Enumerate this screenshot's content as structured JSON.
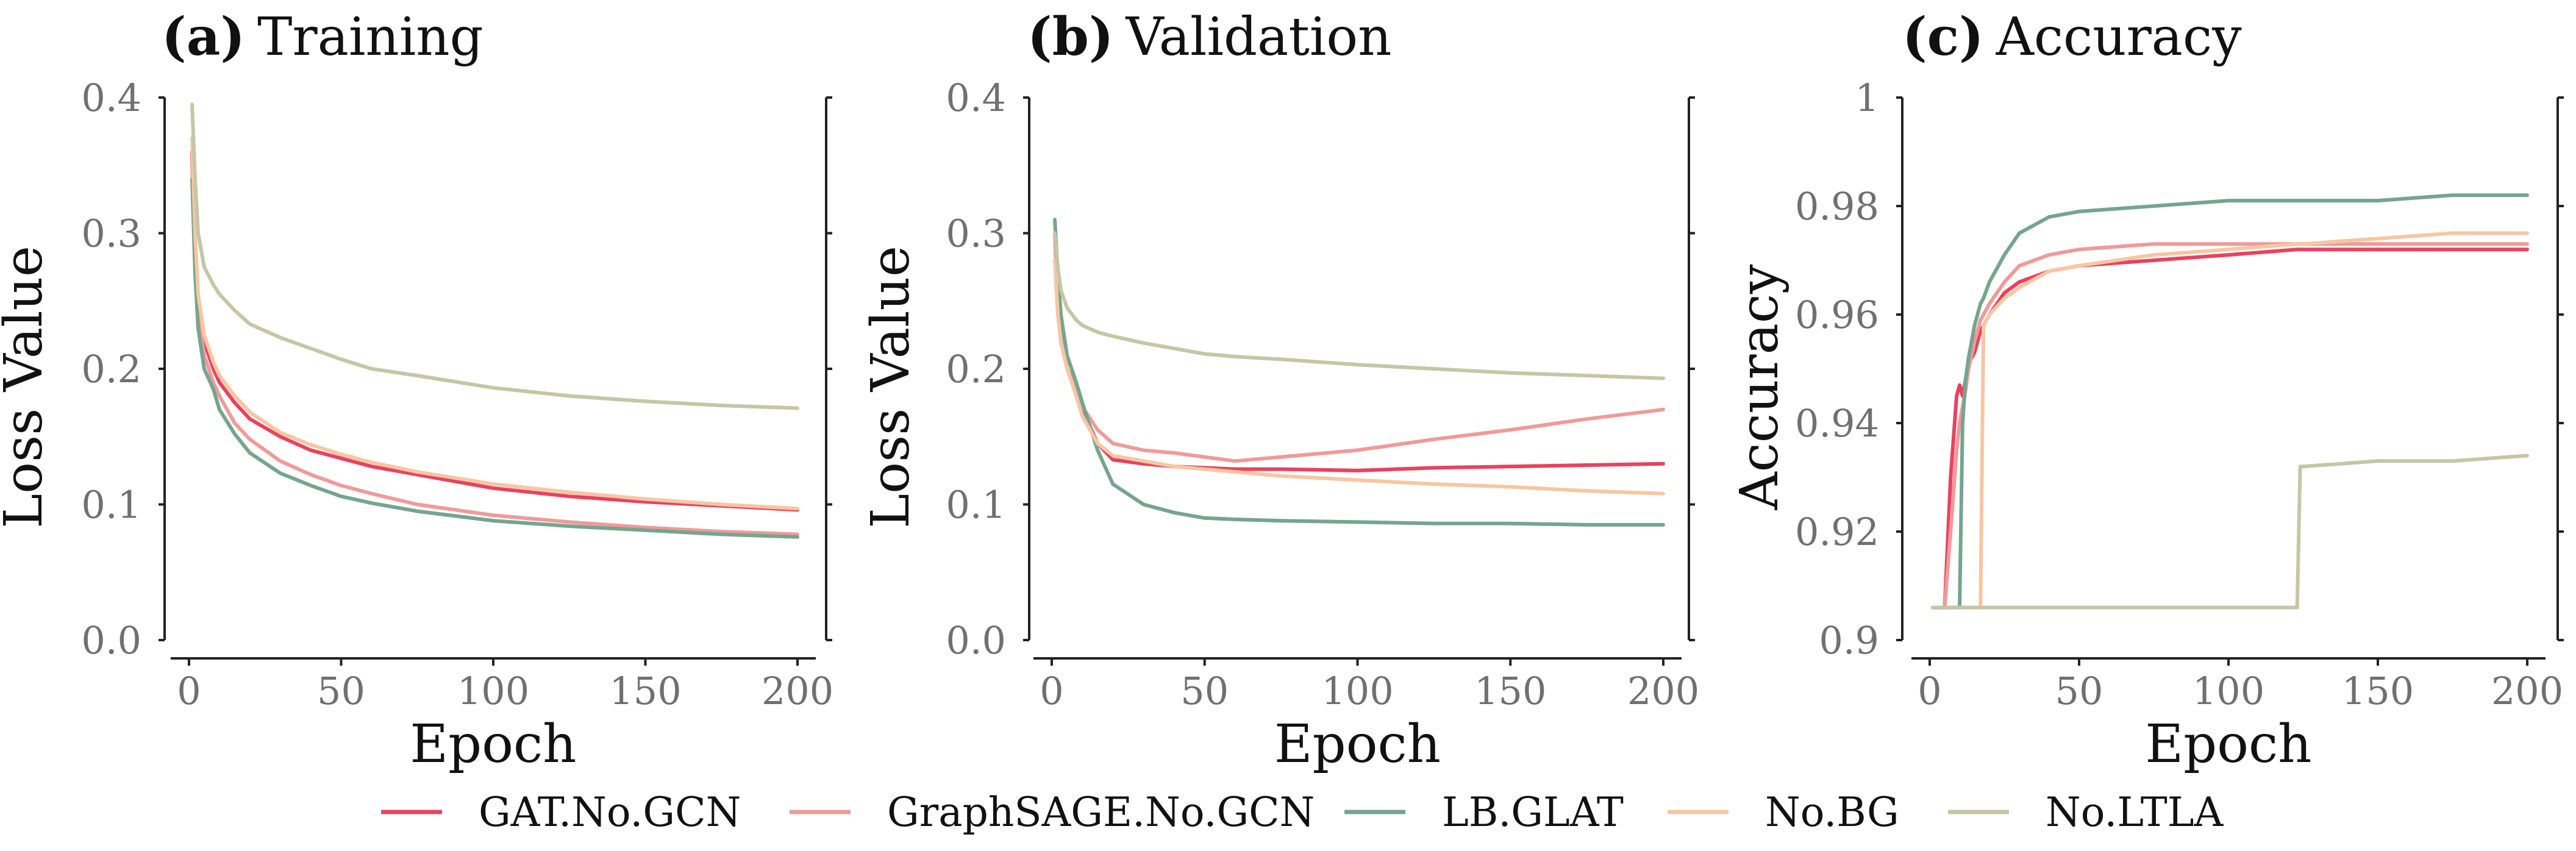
{
  "legend": [
    {
      "name": "GAT.No.GCN",
      "color": "#e8425f"
    },
    {
      "name": "GraphSAGE.No.GCN",
      "color": "#f09a9a"
    },
    {
      "name": "LB.GLAT",
      "color": "#74a58f"
    },
    {
      "name": "No.BG",
      "color": "#f7c6a3"
    },
    {
      "name": "No.LTLA",
      "color": "#c5c6a5"
    }
  ],
  "chart_data": [
    {
      "type": "line",
      "panel_letter": "(a)",
      "title": "Training",
      "xlabel": "Epoch",
      "ylabel": "Loss Value",
      "xlim": [
        0,
        200
      ],
      "ylim": [
        0,
        0.4
      ],
      "xticks": [
        0,
        50,
        100,
        150,
        200
      ],
      "xtick_labels": [
        "0",
        "50",
        "100",
        "150",
        "200"
      ],
      "yticks": [
        0,
        0.1,
        0.2,
        0.3,
        0.4
      ],
      "ytick_labels": [
        "0.0",
        "0.1",
        "0.2",
        "0.3",
        "0.4"
      ],
      "x": [
        1,
        2,
        3,
        5,
        8,
        10,
        15,
        20,
        30,
        40,
        50,
        60,
        75,
        100,
        125,
        150,
        175,
        200
      ],
      "series": [
        {
          "name": "GAT.No.GCN",
          "values": [
            0.36,
            0.29,
            0.25,
            0.22,
            0.2,
            0.19,
            0.175,
            0.163,
            0.15,
            0.14,
            0.134,
            0.128,
            0.122,
            0.112,
            0.106,
            0.102,
            0.099,
            0.096
          ]
        },
        {
          "name": "GraphSAGE.No.GCN",
          "values": [
            0.35,
            0.28,
            0.24,
            0.21,
            0.19,
            0.18,
            0.16,
            0.148,
            0.132,
            0.122,
            0.114,
            0.108,
            0.1,
            0.092,
            0.087,
            0.083,
            0.08,
            0.078
          ]
        },
        {
          "name": "LB.GLAT",
          "values": [
            0.34,
            0.27,
            0.23,
            0.2,
            0.185,
            0.17,
            0.152,
            0.138,
            0.123,
            0.114,
            0.106,
            0.101,
            0.095,
            0.088,
            0.084,
            0.081,
            0.078,
            0.076
          ]
        },
        {
          "name": "No.BG",
          "values": [
            0.37,
            0.3,
            0.255,
            0.225,
            0.205,
            0.195,
            0.18,
            0.168,
            0.153,
            0.144,
            0.137,
            0.131,
            0.124,
            0.115,
            0.109,
            0.104,
            0.1,
            0.097
          ]
        },
        {
          "name": "No.LTLA",
          "values": [
            0.395,
            0.34,
            0.3,
            0.275,
            0.262,
            0.255,
            0.243,
            0.233,
            0.223,
            0.215,
            0.207,
            0.2,
            0.195,
            0.186,
            0.18,
            0.176,
            0.173,
            0.171
          ]
        }
      ]
    },
    {
      "type": "line",
      "panel_letter": "(b)",
      "title": "Validation",
      "xlabel": "Epoch",
      "ylabel": "Loss Value",
      "xlim": [
        0,
        200
      ],
      "ylim": [
        0,
        0.4
      ],
      "xticks": [
        0,
        50,
        100,
        150,
        200
      ],
      "xtick_labels": [
        "0",
        "50",
        "100",
        "150",
        "200"
      ],
      "yticks": [
        0,
        0.1,
        0.2,
        0.3,
        0.4
      ],
      "ytick_labels": [
        "0.0",
        "0.1",
        "0.2",
        "0.3",
        "0.4"
      ],
      "x": [
        1,
        2,
        3,
        5,
        8,
        10,
        15,
        20,
        30,
        40,
        50,
        60,
        75,
        100,
        125,
        150,
        175,
        200
      ],
      "series": [
        {
          "name": "GAT.No.GCN",
          "values": [
            0.3,
            0.25,
            0.22,
            0.2,
            0.185,
            0.17,
            0.145,
            0.133,
            0.13,
            0.128,
            0.127,
            0.126,
            0.126,
            0.125,
            0.127,
            0.128,
            0.129,
            0.13
          ]
        },
        {
          "name": "GraphSAGE.No.GCN",
          "values": [
            0.3,
            0.26,
            0.23,
            0.2,
            0.185,
            0.172,
            0.155,
            0.145,
            0.14,
            0.138,
            0.135,
            0.132,
            0.135,
            0.14,
            0.148,
            0.155,
            0.163,
            0.17
          ]
        },
        {
          "name": "LB.GLAT",
          "values": [
            0.31,
            0.27,
            0.24,
            0.21,
            0.19,
            0.175,
            0.14,
            0.115,
            0.1,
            0.094,
            0.09,
            0.089,
            0.088,
            0.087,
            0.086,
            0.086,
            0.085,
            0.085
          ]
        },
        {
          "name": "No.BG",
          "values": [
            0.28,
            0.24,
            0.22,
            0.2,
            0.18,
            0.165,
            0.145,
            0.136,
            0.132,
            0.128,
            0.126,
            0.124,
            0.121,
            0.118,
            0.115,
            0.113,
            0.11,
            0.108
          ]
        },
        {
          "name": "No.LTLA",
          "values": [
            0.3,
            0.275,
            0.258,
            0.245,
            0.236,
            0.232,
            0.227,
            0.224,
            0.219,
            0.215,
            0.211,
            0.209,
            0.207,
            0.203,
            0.2,
            0.197,
            0.195,
            0.193
          ]
        }
      ]
    },
    {
      "type": "line",
      "panel_letter": "(c)",
      "title": "Accuracy",
      "xlabel": "Epoch",
      "ylabel": "Accuracy",
      "xlim": [
        0,
        200
      ],
      "ylim": [
        0.9,
        1
      ],
      "xticks": [
        0,
        50,
        100,
        150,
        200
      ],
      "xtick_labels": [
        "0",
        "50",
        "100",
        "150",
        "200"
      ],
      "yticks": [
        0.9,
        0.92,
        0.94,
        0.96,
        0.98,
        1
      ],
      "ytick_labels": [
        "0.9",
        "0.92",
        "0.94",
        "0.96",
        "0.98",
        "1"
      ],
      "x": [
        1,
        3,
        5,
        7,
        9,
        10,
        11,
        12,
        13,
        15,
        16,
        17,
        18,
        20,
        25,
        30,
        40,
        50,
        75,
        100,
        123,
        124,
        125,
        150,
        175,
        200
      ],
      "series": [
        {
          "name": "GAT.No.GCN",
          "values": [
            0.906,
            0.906,
            0.906,
            0.93,
            0.945,
            0.947,
            0.945,
            0.948,
            0.951,
            0.953,
            0.955,
            0.957,
            0.958,
            0.96,
            0.964,
            0.966,
            0.968,
            0.969,
            0.97,
            0.971,
            0.972,
            0.972,
            0.972,
            0.972,
            0.972,
            0.972
          ]
        },
        {
          "name": "GraphSAGE.No.GCN",
          "values": [
            0.906,
            0.906,
            0.906,
            0.92,
            0.935,
            0.94,
            0.943,
            0.946,
            0.95,
            0.955,
            0.957,
            0.959,
            0.96,
            0.962,
            0.966,
            0.969,
            0.971,
            0.972,
            0.973,
            0.973,
            0.973,
            0.973,
            0.973,
            0.973,
            0.973,
            0.973
          ]
        },
        {
          "name": "LB.GLAT",
          "values": [
            0.906,
            0.906,
            0.906,
            0.906,
            0.906,
            0.906,
            0.94,
            0.948,
            0.952,
            0.958,
            0.96,
            0.962,
            0.963,
            0.966,
            0.971,
            0.975,
            0.978,
            0.979,
            0.98,
            0.981,
            0.981,
            0.981,
            0.981,
            0.981,
            0.982,
            0.982
          ]
        },
        {
          "name": "No.BG",
          "values": [
            0.906,
            0.906,
            0.906,
            0.906,
            0.906,
            0.906,
            0.906,
            0.906,
            0.906,
            0.906,
            0.906,
            0.906,
            0.958,
            0.96,
            0.963,
            0.965,
            0.968,
            0.969,
            0.971,
            0.972,
            0.973,
            0.973,
            0.973,
            0.974,
            0.975,
            0.975
          ]
        },
        {
          "name": "No.LTLA",
          "values": [
            0.906,
            0.906,
            0.906,
            0.906,
            0.906,
            0.906,
            0.906,
            0.906,
            0.906,
            0.906,
            0.906,
            0.906,
            0.906,
            0.906,
            0.906,
            0.906,
            0.906,
            0.906,
            0.906,
            0.906,
            0.906,
            0.932,
            0.932,
            0.933,
            0.933,
            0.934
          ]
        }
      ]
    }
  ]
}
